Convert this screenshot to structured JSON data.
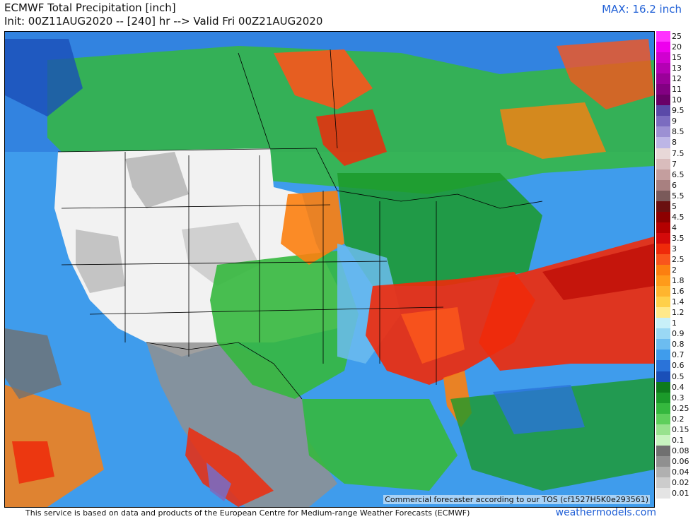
{
  "header": {
    "title": "ECMWF Total Precipitation [inch]",
    "subtitle": "Init: 00Z11AUG2020 -- [240] hr --> Valid Fri 00Z21AUG2020",
    "max_label": "MAX: 16.2 inch"
  },
  "map": {
    "watermark": "Commercial forecaster according to our TOS (cf1527H5K0e293561)"
  },
  "colorbar": {
    "levels": [
      {
        "label": "25",
        "color": "#ff33ff"
      },
      {
        "label": "20",
        "color": "#ee00ee"
      },
      {
        "label": "15",
        "color": "#d000d0"
      },
      {
        "label": "13",
        "color": "#b400b4"
      },
      {
        "label": "12",
        "color": "#9a0099"
      },
      {
        "label": "11",
        "color": "#820082"
      },
      {
        "label": "10",
        "color": "#690068"
      },
      {
        "label": "9.5",
        "color": "#5a49a8"
      },
      {
        "label": "9",
        "color": "#7b6cc0"
      },
      {
        "label": "8.5",
        "color": "#9c90d3"
      },
      {
        "label": "8",
        "color": "#bdb6e6"
      },
      {
        "label": "7.5",
        "color": "#e8d8d8"
      },
      {
        "label": "7",
        "color": "#d9bcbc"
      },
      {
        "label": "6.5",
        "color": "#c49e9e"
      },
      {
        "label": "6",
        "color": "#a88080"
      },
      {
        "label": "5.5",
        "color": "#7a5a5a"
      },
      {
        "label": "5",
        "color": "#6a1010"
      },
      {
        "label": "4.5",
        "color": "#8c0000"
      },
      {
        "label": "4",
        "color": "#b40000"
      },
      {
        "label": "3.5",
        "color": "#d40a0a"
      },
      {
        "label": "3",
        "color": "#ef2a0a"
      },
      {
        "label": "2.5",
        "color": "#f9551c"
      },
      {
        "label": "2",
        "color": "#fc7f10"
      },
      {
        "label": "1.8",
        "color": "#ff9b1a"
      },
      {
        "label": "1.6",
        "color": "#ffb52e"
      },
      {
        "label": "1.4",
        "color": "#ffd04a"
      },
      {
        "label": "1.2",
        "color": "#ffe98a"
      },
      {
        "label": "1",
        "color": "#c8f0f8"
      },
      {
        "label": "0.9",
        "color": "#9ad8f4"
      },
      {
        "label": "0.8",
        "color": "#6cbcf0"
      },
      {
        "label": "0.7",
        "color": "#3f9cec"
      },
      {
        "label": "0.6",
        "color": "#2a73d9"
      },
      {
        "label": "0.5",
        "color": "#1a4fb8"
      },
      {
        "label": "0.4",
        "color": "#0e7a1c"
      },
      {
        "label": "0.3",
        "color": "#1b9a2a"
      },
      {
        "label": "0.25",
        "color": "#35b83e"
      },
      {
        "label": "0.2",
        "color": "#5fcf5c"
      },
      {
        "label": "0.15",
        "color": "#98e28e"
      },
      {
        "label": "0.1",
        "color": "#c8f4c0"
      },
      {
        "label": "0.08",
        "color": "#707070"
      },
      {
        "label": "0.06",
        "color": "#909090"
      },
      {
        "label": "0.04",
        "color": "#b0b0b0"
      },
      {
        "label": "0.02",
        "color": "#cccccc"
      },
      {
        "label": "0.01",
        "color": "#e4e4e4"
      }
    ]
  },
  "footer": {
    "disclaimer": "This service is based on data and products of the European Centre for Medium-range Weather Forecasts (ECMWF)",
    "site": "weathermodels.com"
  }
}
